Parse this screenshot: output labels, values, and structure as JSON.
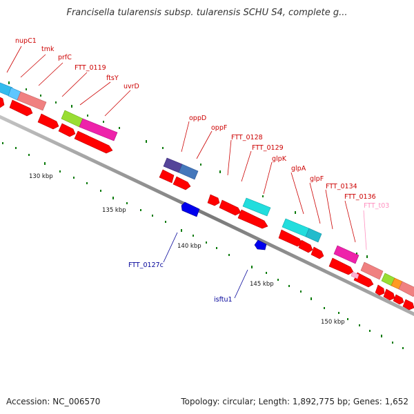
{
  "title": "Francisella tularensis subsp. tularensis SCHU S4, complete g...",
  "footer": {
    "accession": "Accession: NC_006570",
    "summary": "Topology: circular; Length: 1,892,775 bp; Genes: 1,652"
  },
  "scale_labels": [
    "130 kbp",
    "135 kbp",
    "140 kbp",
    "145 kbp",
    "150 kbp"
  ],
  "colors": {
    "forward_label": "#cc0000",
    "reverse_label": "#000099",
    "rna_label": "#ff8fbf",
    "cds_arrow": "#ff0000",
    "backbone": "#808080",
    "tick": "#007a00",
    "reverse_arrow": "#0000ee"
  },
  "genes_forward": [
    {
      "name": "nupC1",
      "color": "#cc0000"
    },
    {
      "name": "tmk",
      "color": "#cc0000"
    },
    {
      "name": "prfC",
      "color": "#cc0000"
    },
    {
      "name": "FTT_0119",
      "color": "#cc0000"
    },
    {
      "name": "ftsY",
      "color": "#cc0000"
    },
    {
      "name": "uvrD",
      "color": "#cc0000"
    },
    {
      "name": "oppD",
      "color": "#cc0000"
    },
    {
      "name": "oppF",
      "color": "#cc0000"
    },
    {
      "name": "FTT_0128",
      "color": "#cc0000"
    },
    {
      "name": "FTT_0129",
      "color": "#cc0000"
    },
    {
      "name": "glpK",
      "color": "#cc0000"
    },
    {
      "name": "glpA",
      "color": "#cc0000"
    },
    {
      "name": "glpF",
      "color": "#cc0000"
    },
    {
      "name": "FTT_0134",
      "color": "#cc0000"
    },
    {
      "name": "FTT_0136",
      "color": "#cc0000"
    },
    {
      "name": "FTT_t03",
      "color": "#ff8fbf"
    }
  ],
  "genes_reverse": [
    {
      "name": "FTT_0127c",
      "color": "#000099"
    },
    {
      "name": "isftu1",
      "color": "#000099"
    }
  ]
}
